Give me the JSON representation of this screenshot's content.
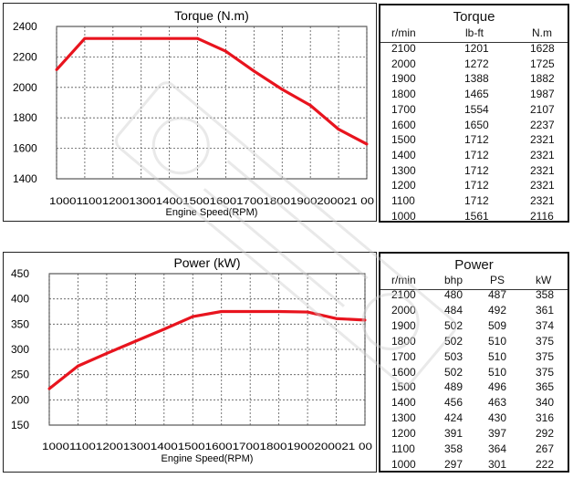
{
  "chart_data": [
    {
      "type": "line",
      "title": "Torque (N.m)",
      "xlabel": "Engine Speed(RPM)",
      "ylabel": "",
      "x_tick_text": "1000 1100 1200 1300 1400 1500 1600 1700 1800 1900 2000 2100",
      "x_tick_text_display": "1000110012001300140015001600170018001900200021 00",
      "x": [
        1000,
        1100,
        1200,
        1300,
        1400,
        1500,
        1600,
        1700,
        1800,
        1900,
        2000,
        2100
      ],
      "y_ticks": [
        1400,
        1600,
        1800,
        2000,
        2200,
        2400
      ],
      "ylim": [
        1400,
        2400
      ],
      "xlim": [
        1000,
        2100
      ],
      "grid": true,
      "series": [
        {
          "values": [
            2116,
            2321,
            2321,
            2321,
            2321,
            2321,
            2237,
            2107,
            1987,
            1882,
            1725,
            1628
          ]
        }
      ],
      "line_color": "#e8141e"
    },
    {
      "type": "line",
      "title": "Power (kW)",
      "xlabel": "Engine Speed(RPM)",
      "ylabel": "",
      "x_tick_text_display": "1000110012001300140015001600170018001900200021 00",
      "x": [
        1000,
        1100,
        1200,
        1300,
        1400,
        1500,
        1600,
        1700,
        1800,
        1900,
        2000,
        2100
      ],
      "y_ticks": [
        150,
        200,
        250,
        300,
        350,
        400,
        450
      ],
      "ylim": [
        150,
        450
      ],
      "xlim": [
        1000,
        2100
      ],
      "grid": true,
      "series": [
        {
          "values": [
            222,
            267,
            292,
            316,
            340,
            365,
            375,
            375,
            375,
            374,
            361,
            358
          ]
        }
      ],
      "line_color": "#e8141e"
    }
  ],
  "torque_table": {
    "title": "Torque",
    "headers": [
      "r/min",
      "lb-ft",
      "N.m"
    ],
    "rows": [
      [
        "2100",
        "1201",
        "1628"
      ],
      [
        "2000",
        "1272",
        "1725"
      ],
      [
        "1900",
        "1388",
        "1882"
      ],
      [
        "1800",
        "1465",
        "1987"
      ],
      [
        "1700",
        "1554",
        "2107"
      ],
      [
        "1600",
        "1650",
        "2237"
      ],
      [
        "1500",
        "1712",
        "2321"
      ],
      [
        "1400",
        "1712",
        "2321"
      ],
      [
        "1300",
        "1712",
        "2321"
      ],
      [
        "1200",
        "1712",
        "2321"
      ],
      [
        "1100",
        "1712",
        "2321"
      ],
      [
        "1000",
        "1561",
        "2116"
      ]
    ]
  },
  "power_table": {
    "title": "Power",
    "headers": [
      "r/min",
      "bhp",
      "PS",
      "kW"
    ],
    "rows": [
      [
        "2100",
        "480",
        "487",
        "358"
      ],
      [
        "2000",
        "484",
        "492",
        "361"
      ],
      [
        "1900",
        "502",
        "509",
        "374"
      ],
      [
        "1800",
        "502",
        "510",
        "375"
      ],
      [
        "1700",
        "503",
        "510",
        "375"
      ],
      [
        "1600",
        "502",
        "510",
        "375"
      ],
      [
        "1500",
        "489",
        "496",
        "365"
      ],
      [
        "1400",
        "456",
        "463",
        "340"
      ],
      [
        "1300",
        "424",
        "430",
        "316"
      ],
      [
        "1200",
        "391",
        "397",
        "292"
      ],
      [
        "1100",
        "358",
        "364",
        "267"
      ],
      [
        "1000",
        "297",
        "301",
        "222"
      ]
    ]
  }
}
